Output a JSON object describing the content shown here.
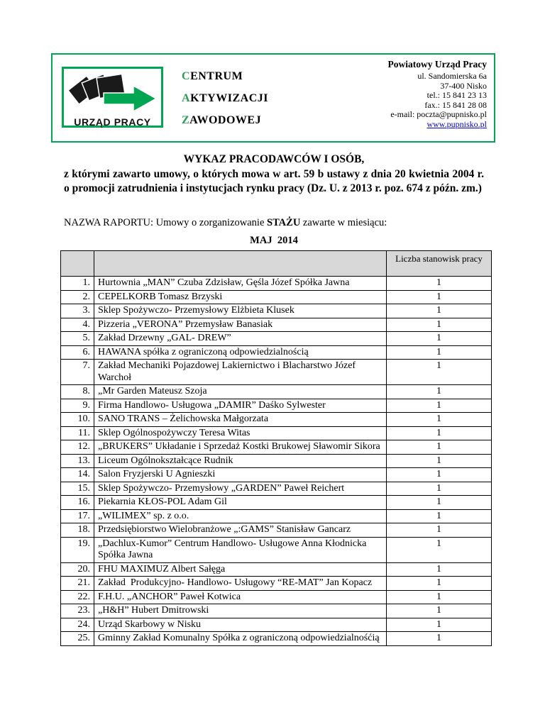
{
  "header": {
    "logo": {
      "caption": "URZĄD PRACY",
      "arrow_icon": "right-arrow-icon"
    },
    "center_lines": [
      {
        "first": "C",
        "rest": "ENTRUM"
      },
      {
        "first": "A",
        "rest": "KTYWIZACJI"
      },
      {
        "first": "Z",
        "rest": "AWODOWEJ"
      }
    ],
    "contact": {
      "name": "Powiatowy Urząd Pracy",
      "address_line1": "ul. Sandomierska 6a",
      "address_line2": "37-400 Nisko",
      "tel": "tel.: 15 841 23 13",
      "fax": "fax.: 15 841 28 08",
      "email": "e-mail: poczta@pupnisko.pl",
      "website": "www.pupnisko.pl"
    }
  },
  "title": {
    "line1": "WYKAZ PRACODAWCÓW I OSÓB,",
    "body": "z którymi zawarto umowy, o których mowa w art. 59 b ustawy z dnia 20 kwietnia 2004 r. o promocji zatrudnienia i instytucjach rynku pracy (Dz. U. z 2013 r. poz. 674 z późn. zm.)"
  },
  "report": {
    "prefix": "NAZWA RAPORTU: Umowy o zorganizowanie ",
    "bold": "STAŻU",
    "suffix": " zawarte w miesiącu:"
  },
  "month": "MAJ  2014",
  "table": {
    "header": {
      "col1": "",
      "col2": "",
      "col3": "Liczba stanowisk pracy"
    },
    "rows": [
      {
        "no": "1.",
        "name": "Hurtownia „MAN” Czuba Zdzisław, Gęśla Józef Spółka Jawna",
        "count": "1"
      },
      {
        "no": "2.",
        "name": "CEPELKORB Tomasz Brzyski",
        "count": "1"
      },
      {
        "no": "3.",
        "name": "Sklep Spożywczo- Przemysłowy Elżbieta Klusek",
        "count": "1"
      },
      {
        "no": "4.",
        "name": "Pizzeria „VERONA” Przemysław Banasiak",
        "count": "1"
      },
      {
        "no": "5.",
        "name": "Zakład Drzewny „GAL- DREW”",
        "count": "1"
      },
      {
        "no": "6.",
        "name": "HAWANA spółka z ograniczoną odpowiedzialnością",
        "count": "1"
      },
      {
        "no": "7.",
        "name": "Zakład Mechaniki Pojazdowej Lakiernictwo i Blacharstwo Józef Warchoł",
        "count": "1"
      },
      {
        "no": "8.",
        "name": "„Mr Garden Mateusz Szoja",
        "count": "1"
      },
      {
        "no": "9.",
        "name": "Firma Handlowo- Usługowa „DAMIR” Daśko Sylwester",
        "count": "1"
      },
      {
        "no": "10.",
        "name": "SANO TRANS – Żelichowska Małgorzata",
        "count": "1"
      },
      {
        "no": "11.",
        "name": "Sklep Ogólnospożywczy Teresa Witas",
        "count": "1"
      },
      {
        "no": "12.",
        "name": "„BRUKERS” Układanie i Sprzedaż Kostki Brukowej Sławomir Sikora",
        "count": "1"
      },
      {
        "no": "13.",
        "name": "Liceum Ogólnokształcące Rudnik",
        "count": "1"
      },
      {
        "no": "14.",
        "name": "Salon Fryzjerski U Agnieszki",
        "count": "1"
      },
      {
        "no": "15.",
        "name": "Sklep Spożywczo- Przemysłowy „GARDEN” Paweł Reichert",
        "count": "1"
      },
      {
        "no": "16.",
        "name": "Piekarnia KŁOS-POL Adam Gil",
        "count": "1"
      },
      {
        "no": "17.",
        "name": "„WILIMEX” sp. z o.o.",
        "count": "1"
      },
      {
        "no": "18.",
        "name": "Przedsiębiorstwo Wielobranżowe „:GAMS” Stanisław Gancarz",
        "count": "1"
      },
      {
        "no": "19.",
        "name": "„Dachlux-Kumor” Centrum Handlowo- Usługowe Anna Kłodnicka Spółka Jawna",
        "count": "1"
      },
      {
        "no": "20.",
        "name": "FHU MAXIMUZ Albert Sałęga",
        "count": "1"
      },
      {
        "no": "21.",
        "name": "Zakład  Produkcyjno- Handlowo- Usługowy “RE-MAT” Jan Kopacz",
        "count": "1"
      },
      {
        "no": "22.",
        "name": "F.H.U. „ANCHOR” Paweł Kotwica",
        "count": "1"
      },
      {
        "no": "23.",
        "name": "„H&H” Hubert Dmitrowski",
        "count": "1"
      },
      {
        "no": "24.",
        "name": "Urząd Skarbowy w Nisku",
        "count": "1"
      },
      {
        "no": "25.",
        "name": "Gminny Zakład Komunalny Spółka z ograniczoną odpowiedzialnośćią",
        "count": "1"
      }
    ]
  },
  "colors": {
    "brand_green": "#00A651",
    "letter_green": "#2E9A57",
    "link_blue": "#0000CC",
    "table_header_grey": "#D8D8D8"
  }
}
